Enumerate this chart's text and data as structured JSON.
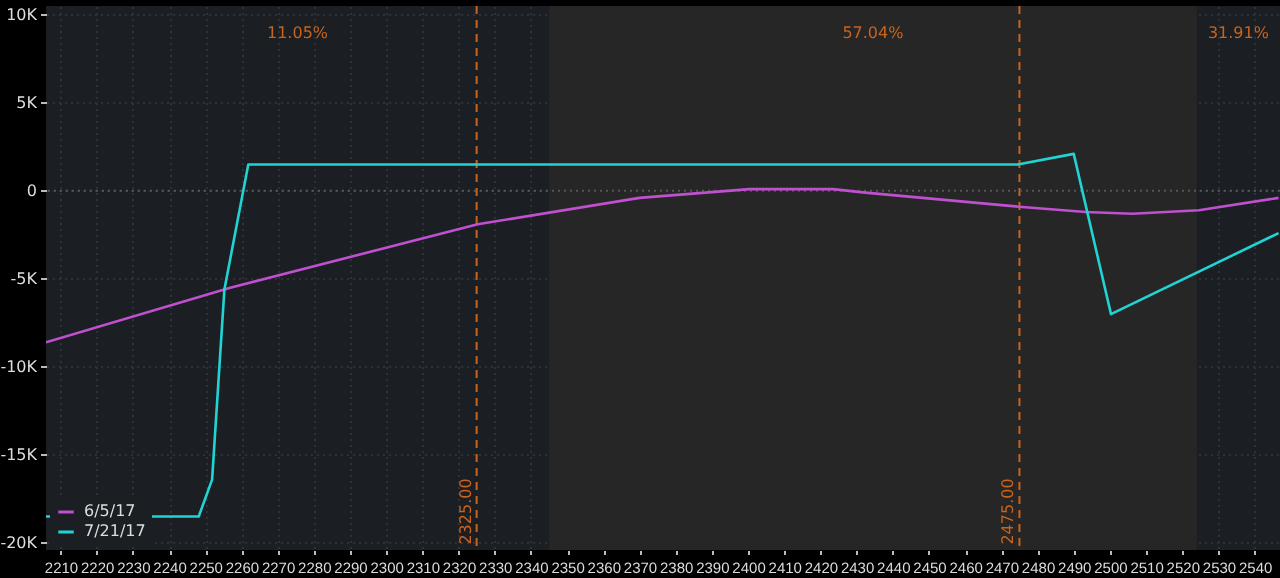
{
  "chart_data": {
    "type": "line",
    "x": [
      2206,
      2248.2,
      2251.9,
      2255.3,
      2261.9,
      2474.5,
      2490,
      2500.3,
      2546.6
    ],
    "series": [
      {
        "name": "6/5/17",
        "color": "#c050d0",
        "x": [
          2206,
          2256.9,
          2325.3,
          2370,
          2400.4,
          2423.4,
          2432.4,
          2474.9,
          2493.3,
          2506.2,
          2524.6,
          2546.6
        ],
        "values": [
          -8600,
          -5500,
          -1900,
          -400,
          100,
          100,
          -100,
          -900,
          -1200,
          -1300,
          -1100,
          -400
        ]
      },
      {
        "name": "7/21/17",
        "color": "#22d3d3",
        "values": [
          -18500,
          -18500,
          -16400,
          -5600,
          1500,
          1500,
          2100,
          -7000,
          -2400
        ]
      }
    ],
    "xlim": [
      2206,
      2547
    ],
    "xticks": [
      2210,
      2220,
      2230,
      2240,
      2250,
      2260,
      2270,
      2280,
      2290,
      2300,
      2310,
      2320,
      2330,
      2340,
      2350,
      2360,
      2370,
      2380,
      2390,
      2400,
      2410,
      2420,
      2430,
      2440,
      2450,
      2460,
      2470,
      2480,
      2490,
      2500,
      2510,
      2520,
      2530,
      2540
    ],
    "ylim": [
      -20400,
      10500
    ],
    "yticks": [
      {
        "value": 10000,
        "label": "10K"
      },
      {
        "value": 5000,
        "label": "5K"
      },
      0,
      {
        "value": -5000,
        "label": "-5K"
      },
      {
        "value": -10000,
        "label": "-10K"
      },
      {
        "value": -15000,
        "label": "-15K"
      },
      {
        "value": -20000,
        "label": "-20K"
      }
    ],
    "grid": true,
    "legend": "bottom left",
    "ref_lines": [
      {
        "axis": "x",
        "value": 2325,
        "label": "2325.00",
        "color": "#c8641e",
        "line_style": "dashed"
      },
      {
        "axis": "x",
        "value": 2475,
        "label": "2475.00",
        "color": "#c8641e",
        "line_style": "dashed"
      },
      {
        "axis": "y",
        "value": 0,
        "color": "#555555",
        "line_style": "dotted"
      }
    ],
    "bands": [
      {
        "axis": "x",
        "from": 2345,
        "to": 2524,
        "color": "#262626"
      }
    ],
    "annotations": [
      "11.05%",
      "57.04%",
      "31.91%"
    ]
  }
}
